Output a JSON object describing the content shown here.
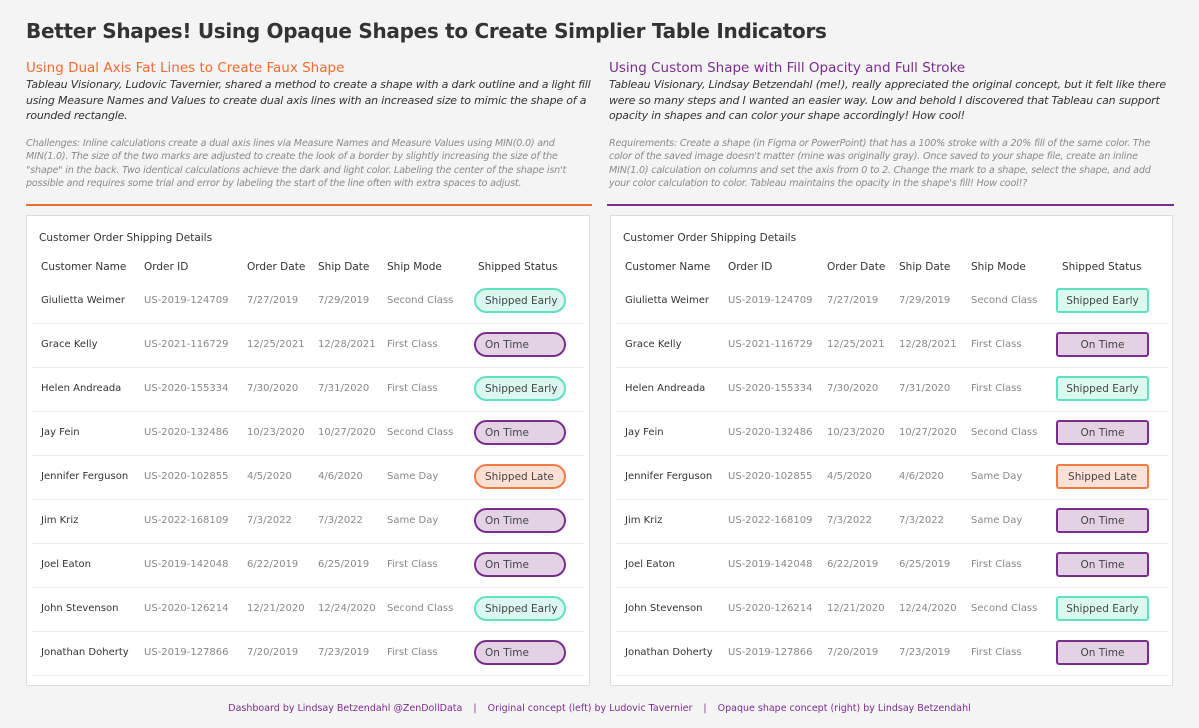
{
  "title": "Better Shapes! Using Opaque Shapes to Create Simplier Table Indicators",
  "colors": {
    "orange": "#f26a30",
    "purple": "#7b2d8e",
    "early": "#5fe0c0",
    "ontime": "#7b2d8e",
    "late": "#f47a45"
  },
  "left": {
    "subtitle": "Using Dual Axis Fat Lines to Create Faux Shape",
    "description": "Tableau Visionary, Ludovic Tavernier, shared a method to create a shape with a dark outline and a light fill using Measure Names and Values to create dual axis lines with an increased size to mimic the shape of a rounded rectangle.",
    "note": "Challenges: Inline calculations create a dual axis lines via Measure Names and Measure Values using MIN(0.0) and MIN(1.0). The size of the two marks are adjusted to create the look of a border by slightly increasing the size of the \"shape\" in the back. Two identical calculations achieve the dark and light color.  Labeling the center of the shape isn't possible and requires some trial and error by labeling the start of the line often with extra spaces to adjust."
  },
  "right": {
    "subtitle": "Using Custom Shape with Fill Opacity and Full Stroke",
    "description": "Tableau Visionary, Lindsay Betzendahl (me!), really appreciated the original concept, but it felt like there were so many steps and I wanted an easier way. Low and behold I discovered that Tableau can support opacity in shapes and can color your shape accordingly! How cool!",
    "note": "Requirements: Create a shape (in Figma or PowerPoint) that has a 100% stroke with a 20% fill of the same color. The color of the saved image doesn't matter (mine was originally gray). Once saved to your shape file, create an inline MIN(1.0) calculation on columns and set the axis from 0 to 2. Change the mark to a shape, select the shape, and add your color calculation to color. Tableau maintains the opacity in the shape's fill! How cool!?"
  },
  "table": {
    "title": "Customer Order Shipping Details",
    "headers": [
      "Customer Name",
      "Order ID",
      "Order Date",
      "Ship Date",
      "Ship Mode",
      "Shipped Status"
    ],
    "rows": [
      [
        "Giulietta Weimer",
        "US-2019-124709",
        "7/27/2019",
        "7/29/2019",
        "Second Class",
        "Shipped Early"
      ],
      [
        "Grace Kelly",
        "US-2021-116729",
        "12/25/2021",
        "12/28/2021",
        "First Class",
        "On Time"
      ],
      [
        "Helen Andreada",
        "US-2020-155334",
        "7/30/2020",
        "7/31/2020",
        "First Class",
        "Shipped Early"
      ],
      [
        "Jay Fein",
        "US-2020-132486",
        "10/23/2020",
        "10/27/2020",
        "Second Class",
        "On Time"
      ],
      [
        "Jennifer Ferguson",
        "US-2020-102855",
        "4/5/2020",
        "4/6/2020",
        "Same Day",
        "Shipped Late"
      ],
      [
        "Jim Kriz",
        "US-2022-168109",
        "7/3/2022",
        "7/3/2022",
        "Same Day",
        "On Time"
      ],
      [
        "Joel Eaton",
        "US-2019-142048",
        "6/22/2019",
        "6/25/2019",
        "First Class",
        "On Time"
      ],
      [
        "John Stevenson",
        "US-2020-126214",
        "12/21/2020",
        "12/24/2020",
        "Second Class",
        "Shipped Early"
      ],
      [
        "Jonathan Doherty",
        "US-2019-127866",
        "7/20/2019",
        "7/23/2019",
        "First Class",
        "On Time"
      ]
    ]
  },
  "footer": {
    "credit": "Dashboard by Lindsay Betzendahl @ZenDollData",
    "sep": "|",
    "left_credit": "Original concept (left) by Ludovic Tavernier",
    "right_credit": "Opaque shape concept (right) by Lindsay Betzendahl"
  }
}
